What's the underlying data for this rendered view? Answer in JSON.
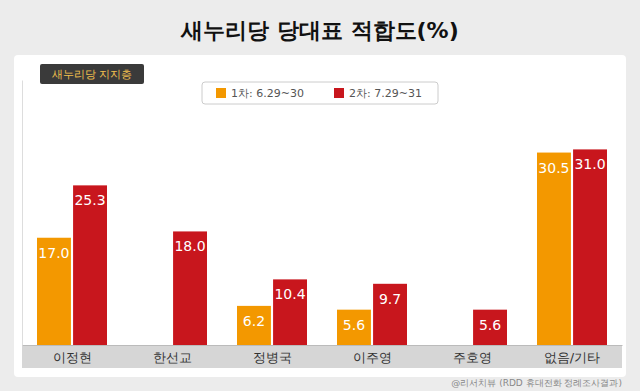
{
  "chart_data": {
    "type": "bar",
    "title": "새누리당 당대표 적합도(%)",
    "subtitle": "새누리당 지지층",
    "annotations": [
      "@리서치뷰 (RDD 휴대전화 정례조사결과)"
    ],
    "categories": [
      "이정현",
      "한선교",
      "정병국",
      "이주영",
      "주호영",
      "없음/기타"
    ],
    "series": [
      {
        "name": "1차: 6.29~30",
        "color": "#f39800",
        "values": [
          17.0,
          null,
          6.2,
          5.6,
          null,
          30.5
        ],
        "value_labels": [
          "17.0",
          null,
          "6.2",
          "5.6",
          null,
          "30.5"
        ]
      },
      {
        "name": "2차: 7.29~31",
        "color": "#c8161d",
        "values": [
          25.3,
          18.0,
          10.4,
          9.7,
          5.6,
          31.0
        ],
        "value_labels": [
          "25.3",
          "18.0",
          "10.4",
          "9.7",
          "5.6",
          "31.0"
        ]
      }
    ],
    "ylim": [
      0,
      42
    ],
    "yticks": [],
    "legend": "top",
    "data_labels": true,
    "tick_labels": "x",
    "grid": false
  }
}
